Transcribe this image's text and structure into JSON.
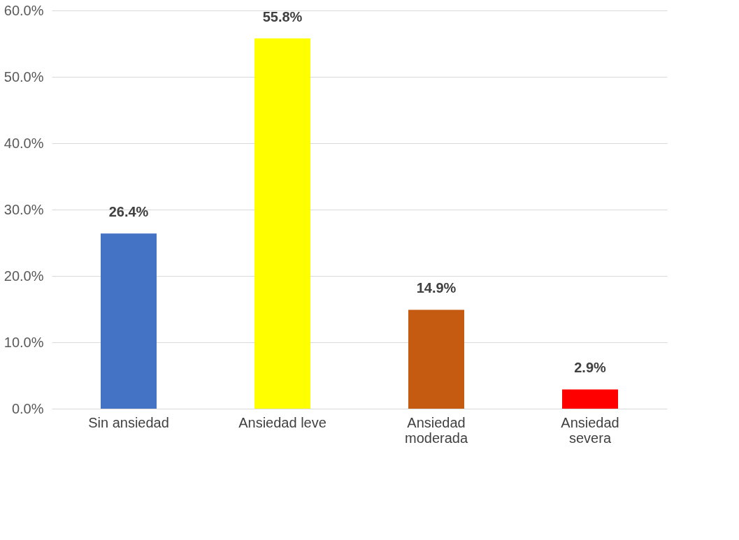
{
  "chart_data": {
    "type": "bar",
    "categories": [
      "Sin ansiedad",
      "Ansiedad leve",
      "Ansiedad moderada",
      "Ansiedad severa"
    ],
    "values": [
      26.4,
      55.8,
      14.9,
      2.9
    ],
    "colors": [
      "#4472c4",
      "#ffff00",
      "#c55a11",
      "#ff0000"
    ],
    "value_labels": [
      "26.4%",
      "55.8%",
      "14.9%",
      "2.9%"
    ],
    "ylim": [
      0,
      60
    ],
    "yticks": [
      {
        "value": 0,
        "label": "0.0%"
      },
      {
        "value": 10,
        "label": "10.0%"
      },
      {
        "value": 20,
        "label": "20.0%"
      },
      {
        "value": 30,
        "label": "30.0%"
      },
      {
        "value": 40,
        "label": "40.0%"
      },
      {
        "value": 50,
        "label": "50.0%"
      },
      {
        "value": 60,
        "label": "60.0%"
      }
    ],
    "grid": "y"
  }
}
